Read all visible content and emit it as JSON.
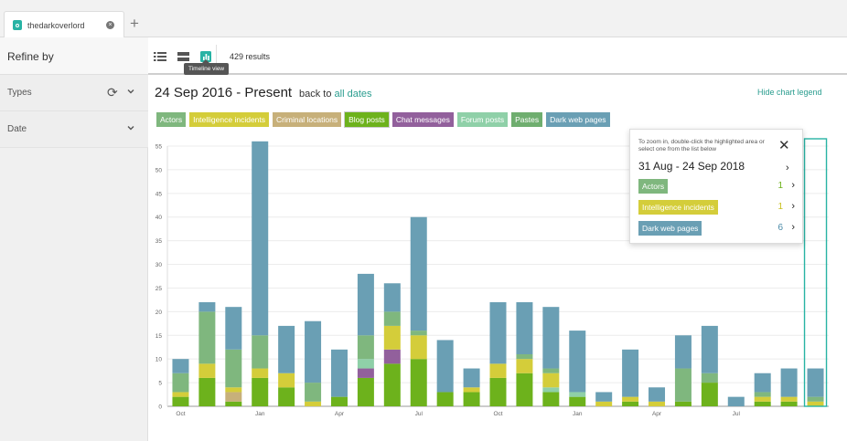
{
  "tab": {
    "title": "thedarkoverlord"
  },
  "sidebar": {
    "title": "Refine by",
    "facets": [
      {
        "label": "Types"
      },
      {
        "label": "Date"
      }
    ]
  },
  "toolbar": {
    "tooltip": "Timeline view",
    "results": "429 results"
  },
  "header": {
    "date_range": "24 Sep 2016 - Present",
    "back_prefix": "back to",
    "back_link": "all dates",
    "hide_legend": "Hide chart legend"
  },
  "legend": [
    {
      "label": "Actors",
      "color": "#7fb77e"
    },
    {
      "label": "Intelligence incidents",
      "color": "#d4cd3a"
    },
    {
      "label": "Criminal locations",
      "color": "#c7b07a"
    },
    {
      "label": "Blog posts",
      "color": "#6db21c"
    },
    {
      "label": "Chat messages",
      "color": "#92609c"
    },
    {
      "label": "Forum posts",
      "color": "#8fd0a8"
    },
    {
      "label": "Pastes",
      "color": "#6fae6f"
    },
    {
      "label": "Dark web pages",
      "color": "#6a9fb4"
    }
  ],
  "popup": {
    "hint": "To zoom in, double-click the highlighted area or select one from the list below",
    "range": "31 Aug - 24 Sep 2018",
    "rows": [
      {
        "label": "Actors",
        "count": "1",
        "color": "#7fb77e",
        "count_color": "#6db21c"
      },
      {
        "label": "Intelligence incidents",
        "count": "1",
        "color": "#d4cd3a",
        "count_color": "#c9c020"
      },
      {
        "label": "Dark web pages",
        "count": "6",
        "color": "#6a9fb4",
        "count_color": "#4a8aa8"
      }
    ]
  },
  "chart_data": {
    "type": "bar",
    "stacked": true,
    "ylim": [
      0,
      55
    ],
    "yticks": [
      0,
      5,
      10,
      15,
      20,
      25,
      30,
      35,
      40,
      45,
      50,
      55
    ],
    "xticks": [
      "Oct",
      "Jan",
      "Apr",
      "Jul",
      "Oct",
      "Jan",
      "Apr",
      "Jul"
    ],
    "grid": true,
    "series": [
      {
        "name": "Blog posts",
        "color": "#6db21c",
        "values": [
          2,
          6,
          1,
          6,
          4,
          0,
          2,
          6,
          9,
          10,
          3,
          3,
          6,
          7,
          3,
          2,
          0,
          1,
          0,
          1,
          5,
          0,
          1,
          1,
          0
        ]
      },
      {
        "name": "Chat messages",
        "color": "#92609c",
        "values": [
          0,
          0,
          0,
          0,
          0,
          0,
          0,
          2,
          3,
          0,
          0,
          0,
          0,
          0,
          0,
          0,
          0,
          0,
          0,
          0,
          0,
          0,
          0,
          0,
          0
        ]
      },
      {
        "name": "Forum posts",
        "color": "#8fd0a8",
        "values": [
          0,
          0,
          0,
          0,
          0,
          0,
          0,
          2,
          0,
          0,
          0,
          0,
          0,
          0,
          1,
          1,
          0,
          0,
          0,
          0,
          0,
          0,
          0,
          0,
          0
        ]
      },
      {
        "name": "Criminal locations",
        "color": "#c7b07a",
        "values": [
          0,
          0,
          2,
          0,
          0,
          0,
          0,
          0,
          0,
          0,
          0,
          0,
          0,
          0,
          0,
          0,
          0,
          0,
          0,
          0,
          0,
          0,
          0,
          0,
          0
        ]
      },
      {
        "name": "Intelligence incidents",
        "color": "#d4cd3a",
        "values": [
          1,
          3,
          1,
          2,
          3,
          1,
          0,
          0,
          5,
          5,
          0,
          1,
          3,
          3,
          3,
          0,
          1,
          1,
          1,
          0,
          0,
          0,
          1,
          1,
          1
        ]
      },
      {
        "name": "Actors",
        "color": "#7fb77e",
        "values": [
          4,
          11,
          8,
          7,
          0,
          4,
          0,
          5,
          3,
          1,
          0,
          0,
          0,
          1,
          1,
          0,
          0,
          0,
          0,
          7,
          2,
          0,
          1,
          0,
          1
        ]
      },
      {
        "name": "Dark web pages",
        "color": "#6a9fb4",
        "values": [
          3,
          2,
          9,
          41,
          10,
          13,
          10,
          13,
          6,
          24,
          11,
          4,
          13,
          11,
          13,
          13,
          2,
          10,
          3,
          7,
          10,
          2,
          4,
          6,
          6
        ]
      }
    ]
  }
}
